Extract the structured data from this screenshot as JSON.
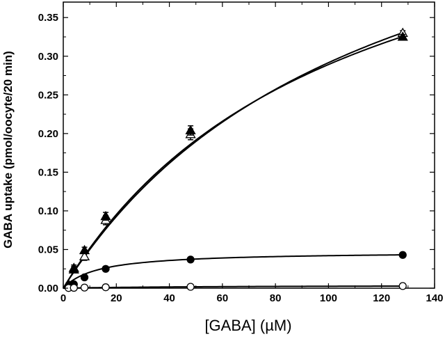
{
  "chart_data": {
    "type": "scatter",
    "title": "",
    "xlabel": "[GABA] (µM)",
    "ylabel": "GABA uptake (pmol/oocyte/20 min)",
    "xlim": [
      0,
      140
    ],
    "ylim": [
      0,
      0.37
    ],
    "xticks": [
      0,
      20,
      40,
      60,
      80,
      100,
      120,
      140
    ],
    "yticks": [
      0.0,
      0.05,
      0.1,
      0.15,
      0.2,
      0.25,
      0.3,
      0.35
    ],
    "xtick_labels": [
      "0",
      "20",
      "40",
      "60",
      "80",
      "100",
      "120",
      "140"
    ],
    "ytick_labels": [
      "0.00",
      "0.05",
      "0.10",
      "0.15",
      "0.20",
      "0.25",
      "0.30",
      "0.35"
    ],
    "grid": false,
    "legend": false,
    "series": [
      {
        "marker": "triangle-open",
        "x": [
          2,
          4,
          8,
          16,
          48,
          128
        ],
        "y": [
          0.004,
          0.026,
          0.041,
          0.088,
          0.199,
          0.33
        ],
        "err": [
          0.002,
          0.004,
          0.005,
          0.006,
          0.007,
          0.003
        ],
        "fit": {
          "vmax": 0.63,
          "km": 116
        }
      },
      {
        "marker": "triangle-filled",
        "x": [
          2,
          4,
          8,
          16,
          48,
          128
        ],
        "y": [
          0.005,
          0.024,
          0.049,
          0.093,
          0.204,
          0.325
        ],
        "err": [
          0.002,
          0.004,
          0.004,
          0.005,
          0.006,
          0.003
        ],
        "fit": {
          "vmax": 0.59,
          "km": 104
        }
      },
      {
        "marker": "circle-filled",
        "x": [
          2,
          4,
          8,
          16,
          48,
          128
        ],
        "y": [
          0.002,
          0.005,
          0.014,
          0.025,
          0.037,
          0.043
        ],
        "err": [
          0.001,
          0.001,
          0.002,
          0.002,
          0.002,
          0.002
        ],
        "fit": {
          "vmax": 0.0475,
          "km": 13
        }
      },
      {
        "marker": "circle-open",
        "x": [
          2,
          4,
          8,
          16,
          48,
          128
        ],
        "y": [
          0.0003,
          0.0005,
          0.0008,
          0.0012,
          0.0018,
          0.0028
        ],
        "err": [
          0,
          0,
          0,
          0,
          0,
          0
        ],
        "fit": {
          "vmax": 0.004,
          "km": 60
        }
      }
    ]
  }
}
